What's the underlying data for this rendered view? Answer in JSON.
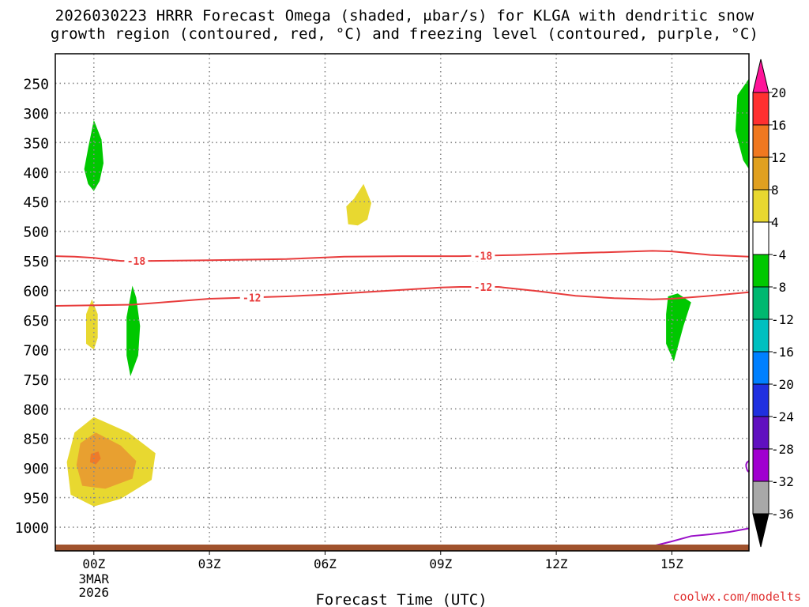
{
  "chart_data": {
    "type": "contour-time-height",
    "title_line1": "2026030223 HRRR Forecast Omega (shaded, μbar/s) for KLGA with dendritic snow",
    "title_line2": "growth region (contoured, red, °C) and freezing level (contoured, purple, °C)",
    "xlabel": "Forecast Time (UTC)",
    "x_range_hours": [
      -1.0,
      17.0
    ],
    "x_ticks": [
      {
        "hour": 0,
        "label": "00Z"
      },
      {
        "hour": 3,
        "label": "03Z"
      },
      {
        "hour": 6,
        "label": "06Z"
      },
      {
        "hour": 9,
        "label": "09Z"
      },
      {
        "hour": 12,
        "label": "12Z"
      },
      {
        "hour": 15,
        "label": "15Z"
      }
    ],
    "date_label_line1": "3MAR",
    "date_label_line2": "2026",
    "y_levels_hpa": [
      "250",
      "300",
      "350",
      "400",
      "450",
      "500",
      "550",
      "600",
      "650",
      "700",
      "750",
      "800",
      "850",
      "900",
      "950",
      "1000"
    ],
    "y_range_hpa": [
      200,
      1040
    ],
    "contours_dendritic": [
      {
        "label": "-18",
        "points": [
          [
            -1.0,
            542
          ],
          [
            -0.5,
            543
          ],
          [
            0,
            545
          ],
          [
            0.7,
            550
          ],
          [
            1.5,
            550
          ],
          [
            3,
            549
          ],
          [
            5,
            547
          ],
          [
            6.5,
            543
          ],
          [
            8,
            542
          ],
          [
            9.5,
            542
          ],
          [
            11,
            540
          ],
          [
            12.5,
            537
          ],
          [
            13.5,
            535
          ],
          [
            14.5,
            533
          ],
          [
            15,
            534
          ],
          [
            16,
            540
          ],
          [
            17,
            543
          ]
        ],
        "label_at_hour": 1.1
      },
      {
        "label": "-12",
        "points": [
          [
            -1.0,
            626
          ],
          [
            0,
            625
          ],
          [
            1,
            624
          ],
          [
            2,
            619
          ],
          [
            3,
            614
          ],
          [
            4,
            612
          ],
          [
            5,
            610
          ],
          [
            6,
            607
          ],
          [
            7,
            603
          ],
          [
            8,
            599
          ],
          [
            9,
            595
          ],
          [
            9.5,
            594
          ],
          [
            10.5,
            594
          ],
          [
            11.5,
            601
          ],
          [
            12.5,
            609
          ],
          [
            13.5,
            613
          ],
          [
            14.5,
            615
          ],
          [
            15,
            614
          ],
          [
            16,
            609
          ],
          [
            17,
            603
          ]
        ],
        "label_at_hour": 4.1
      }
    ],
    "freezing_level_points": [
      [
        13.5,
        1038
      ],
      [
        14,
        1036
      ],
      [
        14.5,
        1032
      ],
      [
        15,
        1024
      ],
      [
        15.5,
        1015
      ],
      [
        16,
        1012
      ],
      [
        16.5,
        1008
      ],
      [
        17,
        1002
      ]
    ],
    "omega_colorbar": {
      "labels": [
        "20",
        "16",
        "12",
        "8",
        "4",
        "-4",
        "-8",
        "-12",
        "-16",
        "-20",
        "-24",
        "-28",
        "-32",
        "-36"
      ],
      "colors": [
        "#ff1499",
        "#ff3030",
        "#f07820",
        "#e0a020",
        "#e8d830",
        "#ffffff",
        "#00c800",
        "#00b870",
        "#00c0c0",
        "#0080ff",
        "#2030e0",
        "#6010c0",
        "#a000d0",
        "#a8a8a8",
        "#000000"
      ]
    }
  },
  "credit": "coolwx.com/modelts",
  "colors": {
    "dendritic": "#e83c3c",
    "freezing": "#9a10c8",
    "ground": "#a0522d",
    "green": "#00c800",
    "yellow": "#e8d830",
    "orange": "#e8a030",
    "grid": "#8a8a8a"
  }
}
